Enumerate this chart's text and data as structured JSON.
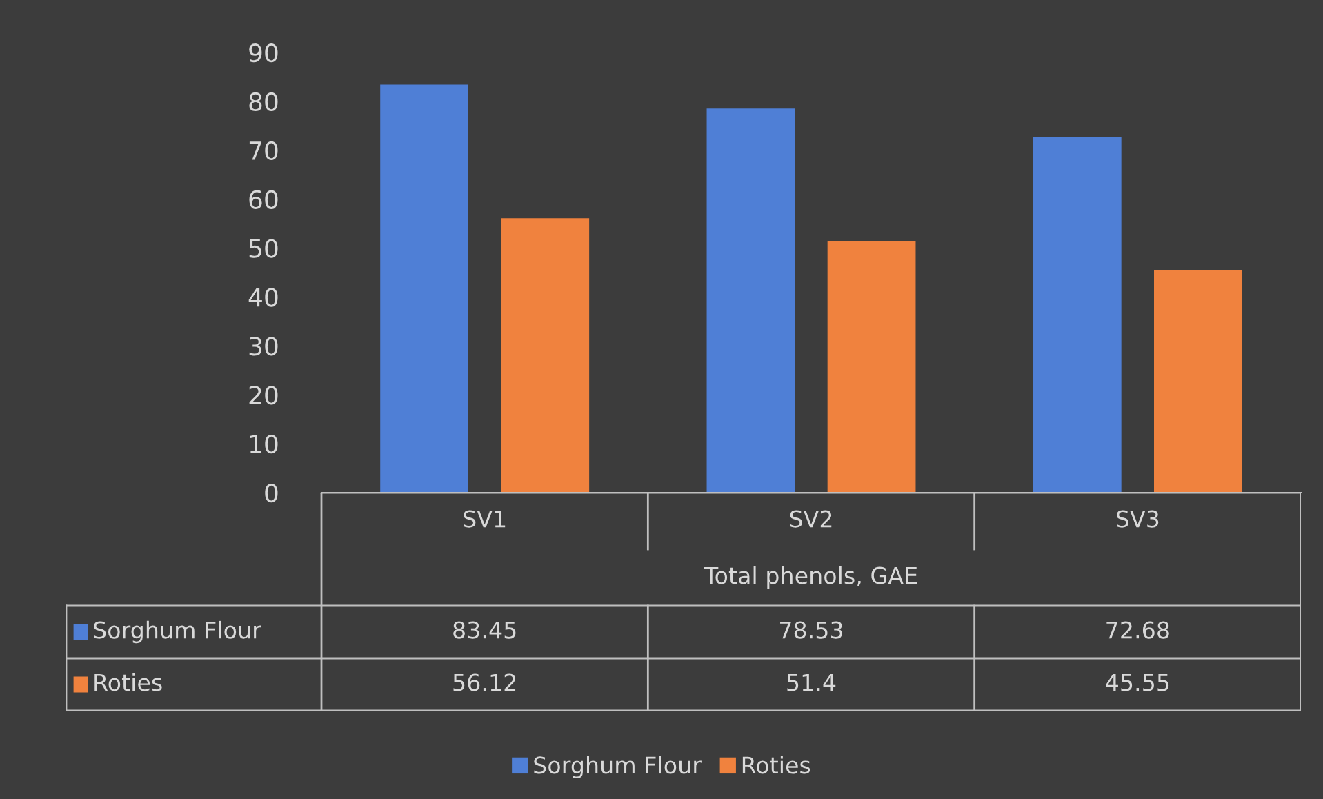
{
  "chart_data": {
    "type": "bar",
    "categories": [
      "SV1",
      "SV2",
      "SV3"
    ],
    "xlabel": "Total phenols, GAE",
    "series": [
      {
        "name": "Sorghum Flour",
        "color": "#4f7fd6",
        "values": [
          83.45,
          78.53,
          72.68
        ]
      },
      {
        "name": "Roties",
        "color": "#f0823e",
        "values": [
          56.12,
          51.4,
          45.55
        ]
      }
    ],
    "ylim": [
      0,
      90
    ],
    "yticks": [
      0,
      10,
      20,
      30,
      40,
      50,
      60,
      70,
      80,
      90
    ],
    "grid": false,
    "legend": "bottom",
    "data_labels": true
  }
}
